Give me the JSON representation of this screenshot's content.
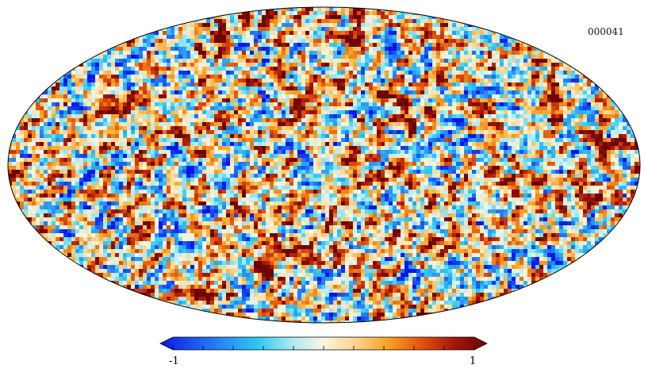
{
  "map": {
    "id_label": "000041",
    "projection": "mollweide",
    "field": "random-gaussian-fluctuation-pattern"
  },
  "colorbar": {
    "min_label": "-1",
    "max_label": "1",
    "min_value": -1,
    "max_value": 1,
    "tick_count": 11,
    "extend": "both",
    "colors": [
      "#0b16e6",
      "#1a55f0",
      "#2a8ef6",
      "#2ec8f2",
      "#a8e9f4",
      "#fbf6e0",
      "#fbd38a",
      "#f6a023",
      "#e5520d",
      "#a3160c",
      "#6b0505"
    ]
  }
}
